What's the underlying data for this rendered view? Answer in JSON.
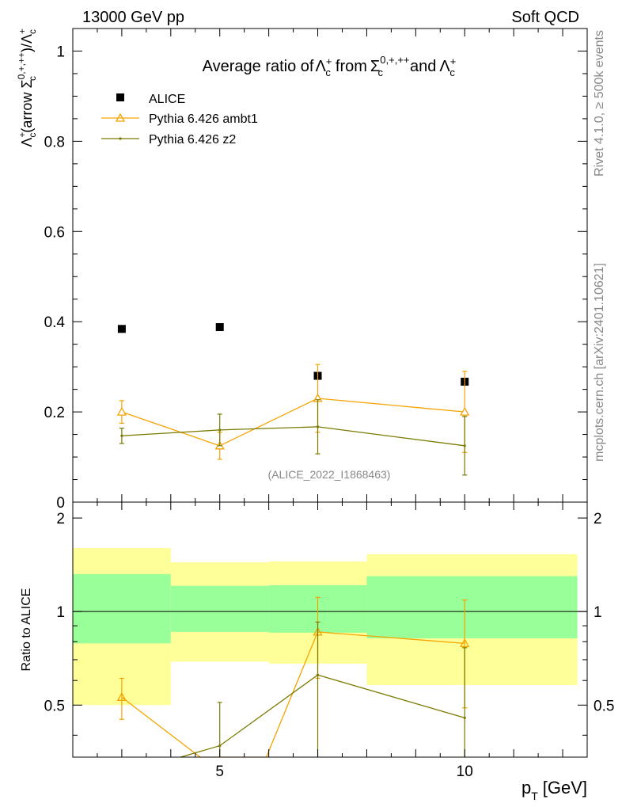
{
  "header": {
    "left": "13000 GeV pp",
    "right": "Soft QCD"
  },
  "side_labels": {
    "rivet": "Rivet 4.1.0, ≥ 500k events",
    "mcplots": "mcplots.cern.ch [arXiv:2401.10621]"
  },
  "chart_data": [
    {
      "type": "scatter",
      "title": "Average ratio of Λc+ from Σc0,+,++ and Λc+",
      "title_parts": {
        "pre": "Average ratio of",
        "mid": "from",
        "post": "and"
      },
      "ylabel": "Λc+(arrow Σc0,+,++)/Λc+",
      "watermark": "(ALICE_2022_I1868463)",
      "xlim": [
        2,
        12.5
      ],
      "ylim": [
        0,
        1.05
      ],
      "yticks": [
        0,
        0.2,
        0.4,
        0.6,
        0.8,
        1
      ],
      "ytick_labels": [
        "0",
        "0.2",
        "0.4",
        "0.6",
        "0.8",
        "1"
      ],
      "legend": {
        "position": "top-left",
        "entries": [
          "ALICE",
          "Pythia 6.426 ambt1",
          "Pythia 6.426 z2"
        ]
      },
      "series": [
        {
          "name": "ALICE",
          "color": "#000000",
          "marker": "square",
          "x": [
            3,
            5,
            7,
            10
          ],
          "y": [
            0.384,
            0.388,
            0.28,
            0.267
          ]
        },
        {
          "name": "Pythia 6.426 ambt1",
          "color": "#f5a300",
          "marker": "triangle",
          "x": [
            3,
            5,
            7,
            10
          ],
          "y": [
            0.2,
            0.125,
            0.23,
            0.2
          ],
          "err": [
            0.025,
            0.03,
            0.075,
            0.09
          ]
        },
        {
          "name": "Pythia 6.426 z2",
          "color": "#7a7a00",
          "marker": "dot",
          "x": [
            3,
            5,
            7,
            10
          ],
          "y": [
            0.147,
            0.16,
            0.167,
            0.125
          ],
          "err": [
            0.017,
            0.035,
            0.06,
            0.065
          ]
        }
      ]
    },
    {
      "type": "line",
      "ylabel": "Ratio to ALICE",
      "xlabel": "pT [GeV]",
      "xlabel_parts": {
        "p": "p",
        "sub": "T",
        "unit": "[GeV]"
      },
      "xlim": [
        2,
        12.5
      ],
      "ylim": [
        0.34,
        2.25
      ],
      "xticks": [
        5,
        10
      ],
      "xtick_labels": [
        "5",
        "10"
      ],
      "yticks": [
        0.5,
        1,
        2
      ],
      "ytick_labels": [
        "0.5",
        "1",
        "2"
      ],
      "bands": [
        {
          "x0": 2,
          "x1": 4,
          "yellow": [
            0.5,
            1.6
          ],
          "green": [
            0.79,
            1.32
          ]
        },
        {
          "x0": 4,
          "x1": 6,
          "yellow": [
            0.69,
            1.44
          ],
          "green": [
            0.86,
            1.21
          ]
        },
        {
          "x0": 6,
          "x1": 8,
          "yellow": [
            0.68,
            1.45
          ],
          "green": [
            0.855,
            1.215
          ]
        },
        {
          "x0": 8,
          "x1": 12.3,
          "yellow": [
            0.58,
            1.53
          ],
          "green": [
            0.82,
            1.3
          ]
        }
      ],
      "series": [
        {
          "name": "Pythia 6.426 ambt1",
          "color": "#f5a300",
          "marker": "triangle",
          "x": [
            3,
            4.6,
            5.95,
            7,
            10
          ],
          "y": [
            0.53,
            0.34,
            0.34,
            0.86,
            0.79
          ],
          "err": [
            0.08,
            0,
            0,
            0.25,
            0.3
          ],
          "marker_mask": [
            1,
            0,
            0,
            1,
            1
          ]
        },
        {
          "name": "Pythia 6.426 z2",
          "color": "#7a7a00",
          "marker": "dot",
          "x": [
            4.2,
            5,
            7,
            10
          ],
          "y": [
            0.34,
            0.37,
            0.625,
            0.455
          ],
          "err": [
            0,
            0.14,
            0.3,
            0.31
          ],
          "marker_mask": [
            0,
            1,
            1,
            1
          ]
        }
      ]
    }
  ]
}
